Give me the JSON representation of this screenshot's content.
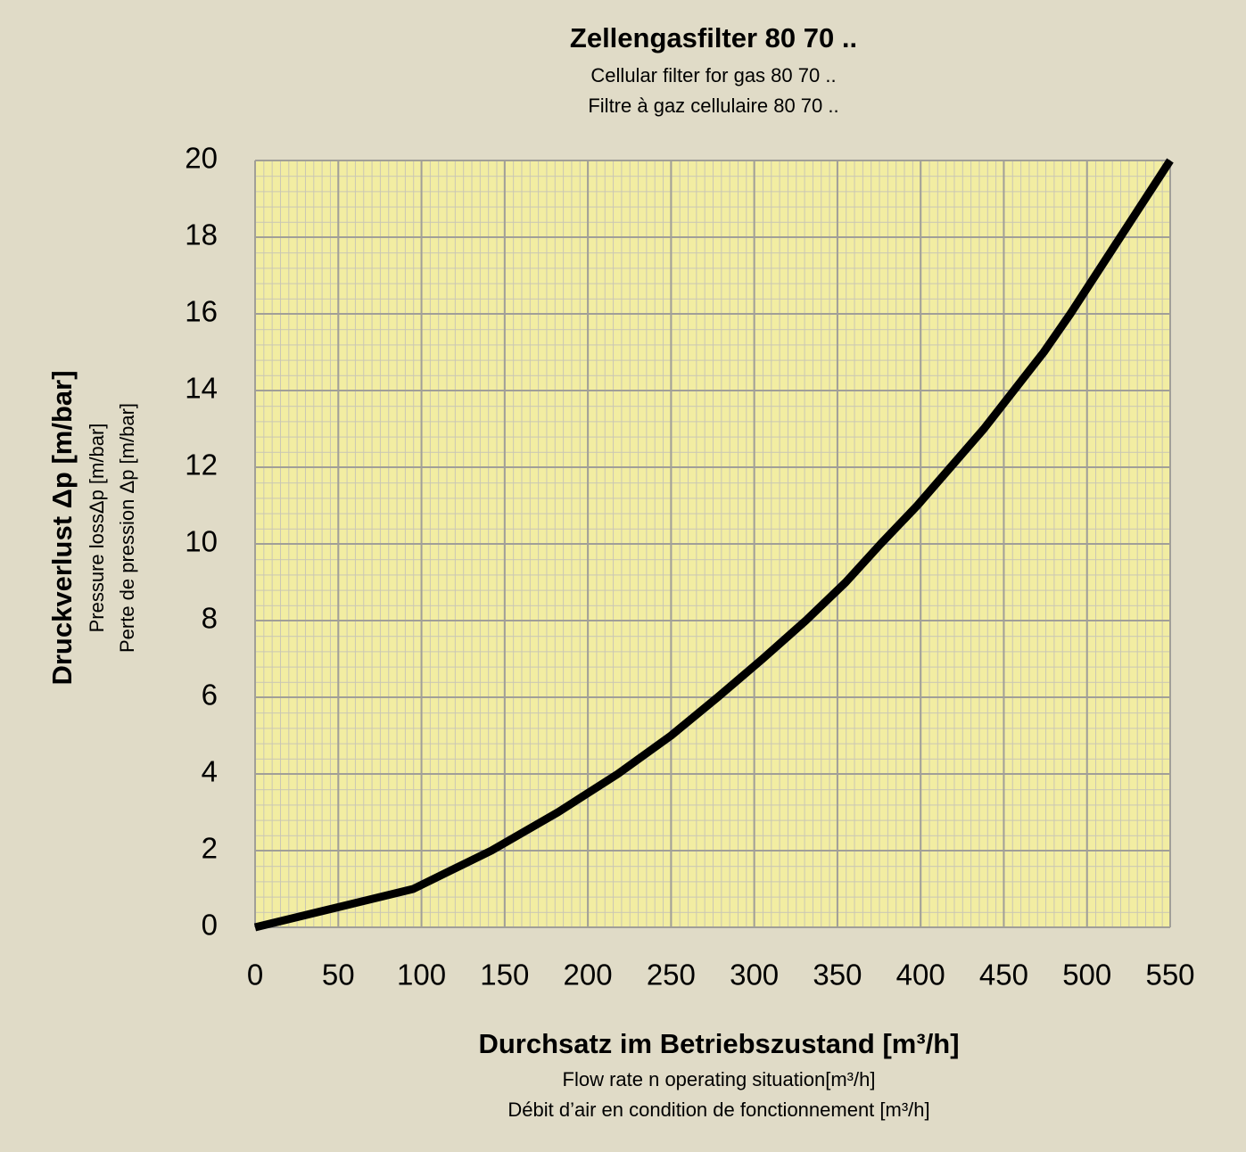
{
  "chart_data": {
    "type": "line",
    "title": "Zellengasfilter 80 70 ..",
    "subtitles": [
      "Cellular filter for gas 80 70 ..",
      "Filtre à gaz cellulaire 80 70 .."
    ],
    "xlabel": "Durchsatz im Betriebszustand [m³/h]",
    "xlabel_sub": [
      "Flow rate n operating situation[m³/h]",
      "Débit d’air en condition de fonctionnement [m³/h]"
    ],
    "ylabel": "Druckverlust Δp [m/bar]",
    "ylabel_sub": [
      "Pressure lossΔp [m/bar]",
      "Perte de pression Δp [m/bar]"
    ],
    "x": [
      0,
      95,
      142,
      182,
      218,
      250,
      278,
      305,
      331,
      355,
      376,
      398,
      418,
      438,
      456,
      474,
      490,
      505,
      520,
      535,
      550
    ],
    "series": [
      {
        "name": "Zellengasfilter 80 70",
        "color": "#000000",
        "values": [
          0,
          1,
          2,
          3,
          4,
          5,
          6,
          7,
          8,
          9,
          10,
          11,
          12,
          13,
          14,
          15,
          16,
          17,
          18,
          19,
          20
        ]
      }
    ],
    "xlim": [
      0,
      550
    ],
    "xticks": [
      0,
      50,
      100,
      150,
      200,
      250,
      300,
      350,
      400,
      450,
      500,
      550
    ],
    "ylim": [
      0,
      20
    ],
    "yticks": [
      0,
      2,
      4,
      6,
      8,
      10,
      12,
      14,
      16,
      18,
      20
    ],
    "grid": true,
    "plot_background": "#f2eda2"
  }
}
